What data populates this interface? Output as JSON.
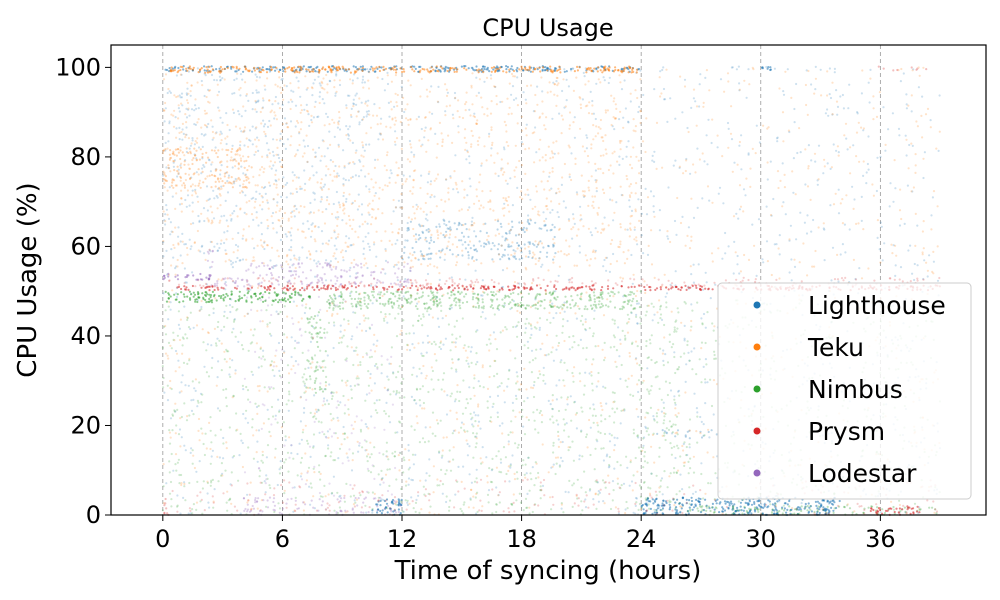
{
  "chart_data": {
    "type": "scatter",
    "title": "CPU Usage",
    "xlabel": "Time of syncing (hours)",
    "ylabel": "CPU Usage (%)",
    "xlim": [
      -2.6,
      41.3
    ],
    "ylim": [
      0,
      105
    ],
    "xticks": [
      0,
      6,
      12,
      18,
      24,
      30,
      36
    ],
    "yticks": [
      0,
      20,
      40,
      60,
      80,
      100
    ],
    "grid": "vertical dashed at x ticks",
    "legend_position": "lower-right",
    "series": [
      {
        "name": "Lighthouse",
        "color": "#1f77b4",
        "bands": [
          {
            "x": [
              0,
              24
            ],
            "y": [
              99,
              100.3
            ],
            "density": 1.0
          },
          {
            "x": [
              24,
              39
            ],
            "y": [
              99.3,
              100.2
            ],
            "density": 0.12
          },
          {
            "x": [
              30,
              30.6
            ],
            "y": [
              99.3,
              100.2
            ],
            "density": 0.9
          },
          {
            "x": [
              10.5,
              12
            ],
            "y": [
              0,
              3.5
            ],
            "density": 1.0
          },
          {
            "x": [
              24,
              34
            ],
            "y": [
              0,
              4
            ],
            "density": 0.9
          },
          {
            "x": [
              12,
              19.7
            ],
            "y": [
              57,
              66
            ],
            "density": 0.35
          },
          {
            "x": [
              0,
              10.5
            ],
            "y": [
              55,
              100
            ],
            "density": 0.1
          },
          {
            "x": [
              24.5,
              28
            ],
            "y": [
              17,
              19
            ],
            "density": 0.3
          },
          {
            "x": [
              0,
              39
            ],
            "y": [
              0,
              100
            ],
            "density": 0.05
          }
        ]
      },
      {
        "name": "Teku",
        "color": "#ff7f0e",
        "bands": [
          {
            "x": [
              0.3,
              24
            ],
            "y": [
              98.8,
              100.2
            ],
            "density": 1.0
          },
          {
            "x": [
              0,
              4.5
            ],
            "y": [
              73,
              82
            ],
            "density": 0.45
          },
          {
            "x": [
              0,
              24
            ],
            "y": [
              55,
              98
            ],
            "density": 0.1
          },
          {
            "x": [
              24,
              39
            ],
            "y": [
              99.3,
              100
            ],
            "density": 0.1
          },
          {
            "x": [
              0,
              39
            ],
            "y": [
              0,
              100
            ],
            "density": 0.04
          }
        ]
      },
      {
        "name": "Nimbus",
        "color": "#2ca02c",
        "bands": [
          {
            "x": [
              0,
              7.4
            ],
            "y": [
              47.5,
              50
            ],
            "density": 0.9
          },
          {
            "x": [
              8.2,
              24
            ],
            "y": [
              46,
              50
            ],
            "density": 0.75
          },
          {
            "x": [
              7.2,
              8.2
            ],
            "y": [
              27,
              47
            ],
            "density": 0.35
          },
          {
            "x": [
              0,
              26
            ],
            "y": [
              0,
              47
            ],
            "density": 0.1
          },
          {
            "x": [
              24,
              39
            ],
            "y": [
              0,
              48
            ],
            "density": 0.07
          },
          {
            "x": [
              26,
              39
            ],
            "y": [
              0,
              2
            ],
            "density": 0.5
          }
        ]
      },
      {
        "name": "Prysm",
        "color": "#d62728",
        "bands": [
          {
            "x": [
              0.5,
              39
            ],
            "y": [
              50.2,
              51.3
            ],
            "density": 1.0
          },
          {
            "x": [
              0,
              39
            ],
            "y": [
              51,
              53
            ],
            "density": 0.25
          },
          {
            "x": [
              35.5,
              38
            ],
            "y": [
              0,
              2
            ],
            "density": 0.9
          },
          {
            "x": [
              35.5,
              38.3
            ],
            "y": [
              99.3,
              100.2
            ],
            "density": 0.3
          },
          {
            "x": [
              0,
              39
            ],
            "y": [
              0,
              8
            ],
            "density": 0.07
          },
          {
            "x": [
              0,
              0.3
            ],
            "y": [
              0,
              4
            ],
            "density": 0.5
          }
        ]
      },
      {
        "name": "Lodestar",
        "color": "#9467bd",
        "bands": [
          {
            "x": [
              0,
              2.4
            ],
            "y": [
              52.5,
              54
            ],
            "density": 0.95
          },
          {
            "x": [
              2.4,
              4
            ],
            "y": [
              51,
              53
            ],
            "density": 0.7
          },
          {
            "x": [
              4,
              12.6
            ],
            "y": [
              51,
              56.5
            ],
            "density": 0.4
          },
          {
            "x": [
              2.2,
              2.6
            ],
            "y": [
              55,
              60
            ],
            "density": 0.5
          },
          {
            "x": [
              4,
              12
            ],
            "y": [
              0,
              4
            ],
            "density": 0.35
          },
          {
            "x": [
              4,
              12
            ],
            "y": [
              4,
              50
            ],
            "density": 0.04
          }
        ]
      }
    ]
  }
}
